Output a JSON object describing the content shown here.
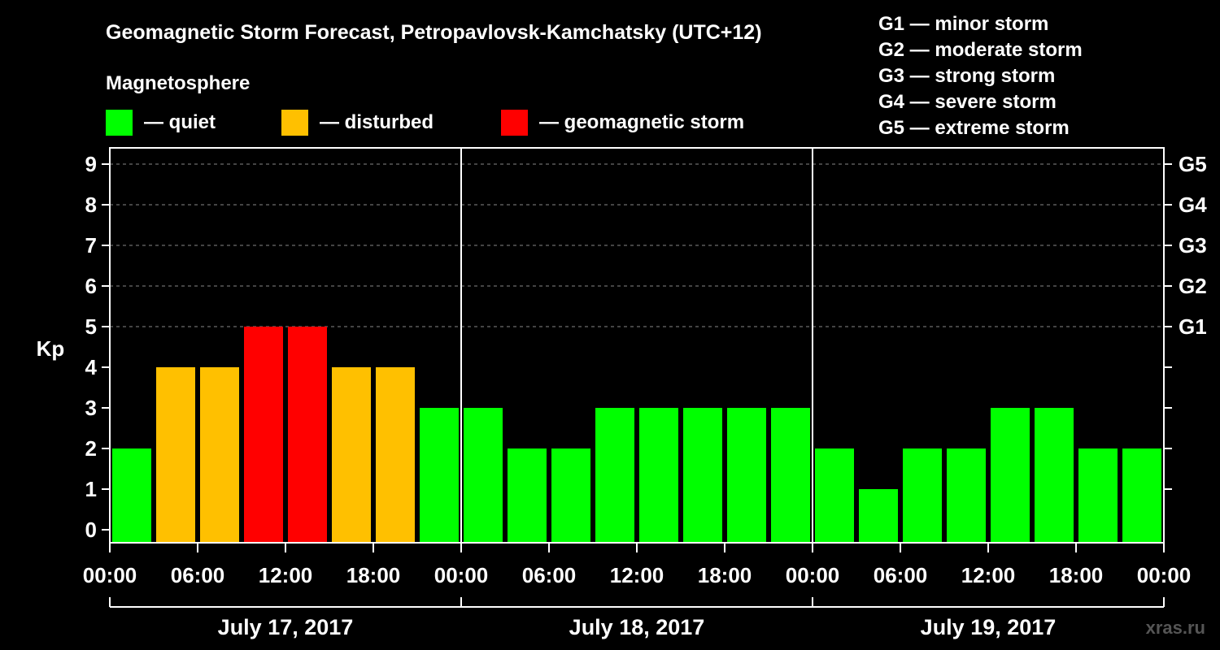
{
  "chart_data": {
    "type": "bar",
    "title": "Geomagnetic Storm Forecast, Petropavlovsk-Kamchatsky (UTC+12)",
    "legend_heading": "Magnetosphere",
    "legend": [
      {
        "label": "— quiet",
        "color": "#00ff00"
      },
      {
        "label": "— disturbed",
        "color": "#ffc000"
      },
      {
        "label": "— geomagnetic storm",
        "color": "#ff0000"
      }
    ],
    "storm_scale": [
      "G1 — minor storm",
      "G2 — moderate storm",
      "G3 — strong storm",
      "G4 — severe storm",
      "G5 — extreme storm"
    ],
    "ylabel": "Kp",
    "ylim": [
      0,
      9
    ],
    "yticks": [
      "0",
      "1",
      "2",
      "3",
      "4",
      "5",
      "6",
      "7",
      "8",
      "9"
    ],
    "right_ticks": [
      {
        "value": 5,
        "label": "G1"
      },
      {
        "value": 6,
        "label": "G2"
      },
      {
        "value": 7,
        "label": "G3"
      },
      {
        "value": 8,
        "label": "G4"
      },
      {
        "value": 9,
        "label": "G5"
      }
    ],
    "xticks": [
      "00:00",
      "06:00",
      "12:00",
      "18:00",
      "00:00",
      "06:00",
      "12:00",
      "18:00",
      "00:00",
      "06:00",
      "12:00",
      "18:00",
      "00:00"
    ],
    "days": [
      "July 17, 2017",
      "July 18, 2017",
      "July 19, 2017"
    ],
    "interval_hours": 3,
    "values": [
      2,
      4,
      4,
      5,
      5,
      4,
      4,
      3,
      3,
      2,
      2,
      3,
      3,
      3,
      3,
      3,
      2,
      1,
      2,
      2,
      3,
      3,
      2,
      2
    ],
    "colors": {
      "quiet": "#00ff00",
      "disturbed": "#ffc000",
      "storm": "#ff0000"
    },
    "watermark": "xras.ru"
  }
}
